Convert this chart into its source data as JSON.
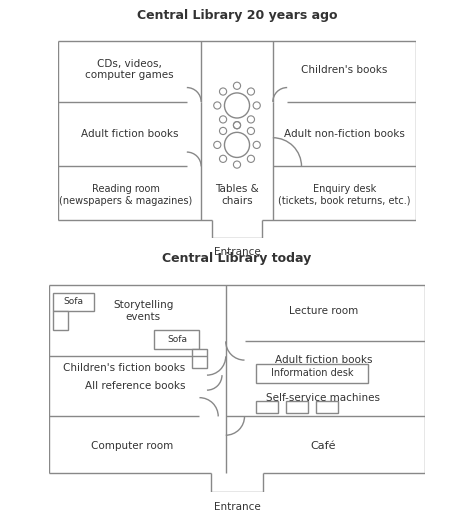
{
  "title1": "Central Library 20 years ago",
  "title2": "Central Library today",
  "bg_color": "#ffffff",
  "gc": "#888888",
  "tc": "#333333",
  "lw": 1.0,
  "entrance_label": "Entrance",
  "plan1_rooms": {
    "top_left": "CDs, videos,\ncomputer games",
    "top_right": "Children's books",
    "mid_left": "Adult fiction books",
    "mid_right": "Adult non-fiction books",
    "bot_left": "Reading room\n(newspapers & magazines)",
    "bot_right": "Enquiry desk\n(tickets, book returns, etc.)",
    "center": "Tables &\nchairs"
  },
  "plan2_rooms": {
    "top_left": "Storytelling\nevents",
    "top_right": "Lecture room",
    "mid_left_top": "Children's fiction books",
    "mid_left_bot": "All reference books",
    "mid_right_top": "Adult fiction books",
    "mid_right_bot": "Self-service machines",
    "bot_left": "Computer room",
    "bot_right": "Café",
    "sofa1": "Sofa",
    "sofa2": "Sofa",
    "info_desk": "Information desk"
  }
}
